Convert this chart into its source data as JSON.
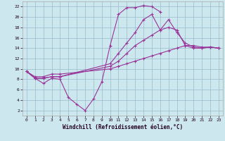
{
  "xlabel": "Windchill (Refroidissement éolien,°C)",
  "bg_color": "#cce8ee",
  "grid_color": "#99bbcc",
  "line_color": "#993399",
  "marker": "+",
  "xlim": [
    -0.5,
    23.5
  ],
  "ylim": [
    1,
    23
  ],
  "xticks": [
    0,
    1,
    2,
    3,
    4,
    5,
    6,
    7,
    8,
    9,
    10,
    11,
    12,
    13,
    14,
    15,
    16,
    17,
    18,
    19,
    20,
    21,
    22,
    23
  ],
  "yticks": [
    2,
    4,
    6,
    8,
    10,
    12,
    14,
    16,
    18,
    20,
    22
  ],
  "lines": [
    {
      "x": [
        0,
        1,
        2,
        3,
        4,
        5,
        6,
        7,
        8,
        9,
        10,
        11,
        12,
        13,
        14,
        15,
        16
      ],
      "y": [
        9.5,
        8.2,
        7.2,
        8.2,
        8.0,
        4.5,
        3.2,
        2.0,
        4.2,
        7.5,
        14.5,
        20.5,
        21.8,
        21.8,
        22.2,
        22.0,
        21.0
      ]
    },
    {
      "x": [
        0,
        1,
        2,
        3,
        4,
        10,
        11,
        12,
        13,
        14,
        15,
        16,
        17,
        18,
        19,
        20,
        21,
        22,
        23
      ],
      "y": [
        9.5,
        8.2,
        8.2,
        8.5,
        8.5,
        11.0,
        13.0,
        15.0,
        17.0,
        19.5,
        20.5,
        17.5,
        19.5,
        17.0,
        15.0,
        14.2,
        14.0,
        14.2,
        14.0
      ]
    },
    {
      "x": [
        0,
        1,
        2,
        3,
        4,
        10,
        11,
        12,
        13,
        14,
        15,
        16,
        17,
        18,
        19,
        20,
        21,
        22,
        23
      ],
      "y": [
        9.5,
        8.2,
        8.2,
        8.5,
        8.5,
        10.5,
        11.5,
        13.0,
        14.5,
        15.5,
        16.5,
        17.5,
        18.0,
        17.5,
        14.5,
        14.0,
        14.0,
        14.2,
        14.0
      ]
    },
    {
      "x": [
        0,
        1,
        2,
        3,
        4,
        10,
        11,
        12,
        13,
        14,
        15,
        16,
        17,
        18,
        19,
        20,
        21,
        22,
        23
      ],
      "y": [
        9.5,
        8.5,
        8.5,
        9.0,
        9.0,
        10.0,
        10.5,
        11.0,
        11.5,
        12.0,
        12.5,
        13.0,
        13.5,
        14.0,
        14.5,
        14.5,
        14.2,
        14.2,
        14.0
      ]
    }
  ]
}
